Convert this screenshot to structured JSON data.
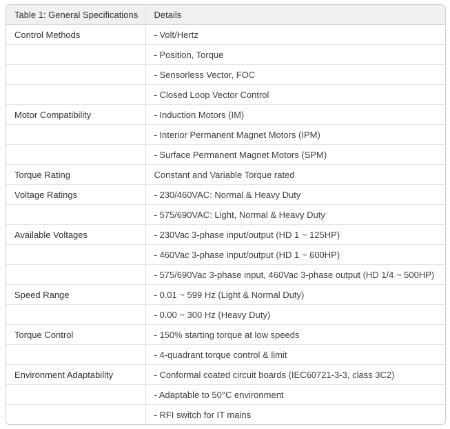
{
  "table": {
    "header": {
      "col1": "Table 1: General Specifications",
      "col2": "Details"
    },
    "rows": [
      {
        "category": "Control Methods",
        "detail": "- Volt/Hertz"
      },
      {
        "category": "",
        "detail": "- Position, Torque"
      },
      {
        "category": "",
        "detail": "- Sensorless Vector, FOC"
      },
      {
        "category": "",
        "detail": "- Closed Loop Vector Control"
      },
      {
        "category": "Motor Compatibility",
        "detail": "- Induction Motors (IM)"
      },
      {
        "category": "",
        "detail": "- Interior Permanent Magnet Motors (IPM)"
      },
      {
        "category": "",
        "detail": "- Surface Permanent Magnet Motors (SPM)"
      },
      {
        "category": "Torque Rating",
        "detail": "Constant and Variable Torque rated"
      },
      {
        "category": "Voltage Ratings",
        "detail": "- 230/460VAC: Normal & Heavy Duty"
      },
      {
        "category": "",
        "detail": "- 575/690VAC: Light, Normal & Heavy Duty"
      },
      {
        "category": "Available Voltages",
        "detail": "- 230Vac 3-phase input/output (HD 1 ~ 125HP)"
      },
      {
        "category": "",
        "detail": "- 460Vac 3-phase input/output (HD 1 ~ 600HP)"
      },
      {
        "category": "",
        "detail": "- 575/690Vac 3-phase input, 460Vac 3-phase output (HD 1/4 ~ 500HP)"
      },
      {
        "category": "Speed Range",
        "detail": "- 0.01 ~ 599 Hz (Light & Normal Duty)"
      },
      {
        "category": "",
        "detail": "- 0.00 ~ 300 Hz (Heavy Duty)"
      },
      {
        "category": "Torque Control",
        "detail": "- 150% starting torque at low speeds"
      },
      {
        "category": "",
        "detail": "- 4-quadrant torque control & limit"
      },
      {
        "category": "Environment Adaptability",
        "detail": "- Conformal coated circuit boards (IEC60721-3-3, class 3C2)"
      },
      {
        "category": "",
        "detail": "- Adaptable to 50°C environment"
      },
      {
        "category": "",
        "detail": "- RFI switch for IT mains"
      }
    ],
    "colors": {
      "header_bg": "#f0f0f0",
      "card_border": "#d2d2d2",
      "row_divider": "#e7e7e7",
      "text": "#3d3d3d"
    }
  }
}
